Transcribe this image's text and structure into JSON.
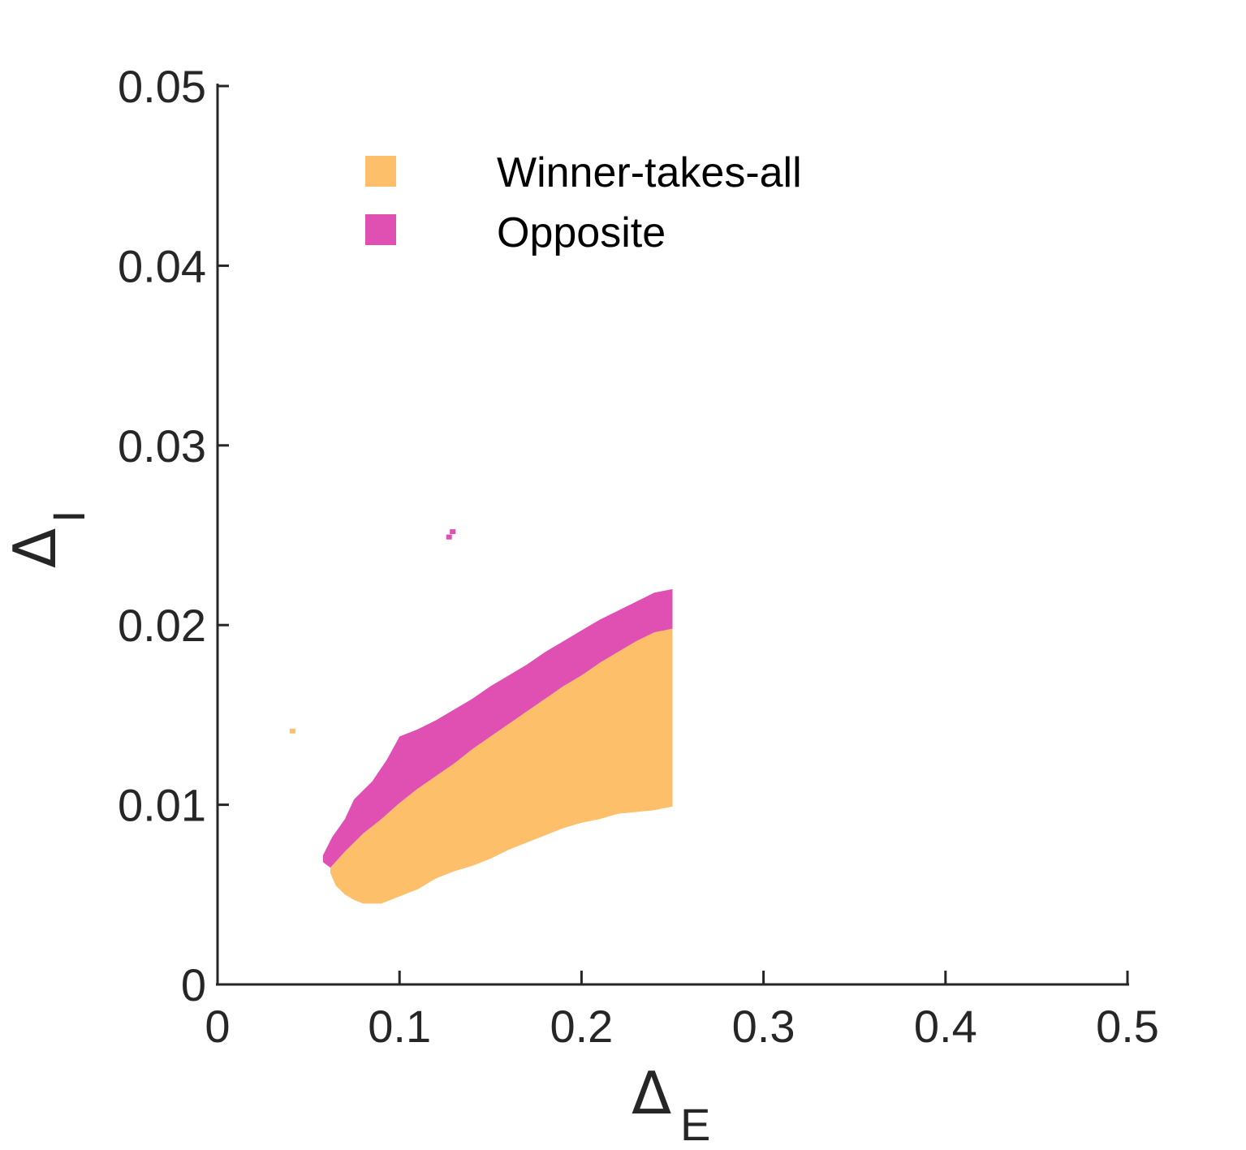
{
  "chart_data": {
    "type": "area",
    "xlabel": {
      "symbol": "Δ",
      "subscript": "E"
    },
    "ylabel": {
      "symbol": "Δ",
      "subscript": "I"
    },
    "xlim": [
      0,
      0.5
    ],
    "ylim": [
      0,
      0.05
    ],
    "xticks": [
      0,
      0.1,
      0.2,
      0.3,
      0.4,
      0.5
    ],
    "xtick_labels": [
      "0",
      "0.1",
      "0.2",
      "0.3",
      "0.4",
      "0.5"
    ],
    "yticks": [
      0,
      0.01,
      0.02,
      0.03,
      0.04,
      0.05
    ],
    "ytick_labels": [
      "0",
      "0.01",
      "0.02",
      "0.03",
      "0.04",
      "0.05"
    ],
    "grid": false,
    "legend_position": "top-left",
    "series": [
      {
        "name": "Winner-takes-all",
        "color": "#FDBF6A",
        "upper": [
          [
            0.062,
            0.0065
          ],
          [
            0.07,
            0.0074
          ],
          [
            0.08,
            0.0084
          ],
          [
            0.09,
            0.0092
          ],
          [
            0.1,
            0.0101
          ],
          [
            0.11,
            0.0109
          ],
          [
            0.12,
            0.0116
          ],
          [
            0.13,
            0.0123
          ],
          [
            0.14,
            0.0131
          ],
          [
            0.15,
            0.0138
          ],
          [
            0.16,
            0.0145
          ],
          [
            0.17,
            0.0152
          ],
          [
            0.18,
            0.0159
          ],
          [
            0.19,
            0.0166
          ],
          [
            0.2,
            0.0172
          ],
          [
            0.21,
            0.0179
          ],
          [
            0.22,
            0.0185
          ],
          [
            0.23,
            0.0191
          ],
          [
            0.24,
            0.0196
          ],
          [
            0.25,
            0.0198
          ]
        ],
        "lower": [
          [
            0.062,
            0.0062
          ],
          [
            0.065,
            0.0055
          ],
          [
            0.07,
            0.005
          ],
          [
            0.075,
            0.0047
          ],
          [
            0.08,
            0.0045
          ],
          [
            0.09,
            0.0045
          ],
          [
            0.1,
            0.0049
          ],
          [
            0.11,
            0.0053
          ],
          [
            0.12,
            0.0059
          ],
          [
            0.13,
            0.0063
          ],
          [
            0.14,
            0.0066
          ],
          [
            0.15,
            0.007
          ],
          [
            0.16,
            0.0075
          ],
          [
            0.17,
            0.0079
          ],
          [
            0.18,
            0.0083
          ],
          [
            0.19,
            0.0087
          ],
          [
            0.2,
            0.009
          ],
          [
            0.21,
            0.0092
          ],
          [
            0.22,
            0.0095
          ],
          [
            0.23,
            0.0096
          ],
          [
            0.24,
            0.0097
          ],
          [
            0.25,
            0.0099
          ]
        ],
        "isolated_points": [
          [
            0.041,
            0.0141
          ]
        ]
      },
      {
        "name": "Opposite",
        "color": "#E050B3",
        "upper": [
          [
            0.058,
            0.0072
          ],
          [
            0.063,
            0.0082
          ],
          [
            0.07,
            0.0092
          ],
          [
            0.075,
            0.0103
          ],
          [
            0.085,
            0.0113
          ],
          [
            0.093,
            0.0125
          ],
          [
            0.1,
            0.0138
          ],
          [
            0.11,
            0.0142
          ],
          [
            0.12,
            0.0147
          ],
          [
            0.13,
            0.0153
          ],
          [
            0.14,
            0.0159
          ],
          [
            0.15,
            0.0166
          ],
          [
            0.16,
            0.0172
          ],
          [
            0.17,
            0.0178
          ],
          [
            0.18,
            0.0185
          ],
          [
            0.19,
            0.0191
          ],
          [
            0.2,
            0.0197
          ],
          [
            0.21,
            0.0203
          ],
          [
            0.22,
            0.0208
          ],
          [
            0.23,
            0.0213
          ],
          [
            0.24,
            0.0218
          ],
          [
            0.25,
            0.022
          ]
        ],
        "lower": [
          [
            0.058,
            0.0068
          ],
          [
            0.062,
            0.0065
          ],
          [
            0.07,
            0.0074
          ],
          [
            0.08,
            0.0084
          ],
          [
            0.09,
            0.0092
          ],
          [
            0.1,
            0.0101
          ],
          [
            0.11,
            0.0109
          ],
          [
            0.12,
            0.0116
          ],
          [
            0.13,
            0.0123
          ],
          [
            0.14,
            0.0131
          ],
          [
            0.15,
            0.0138
          ],
          [
            0.16,
            0.0145
          ],
          [
            0.17,
            0.0152
          ],
          [
            0.18,
            0.0159
          ],
          [
            0.19,
            0.0166
          ],
          [
            0.2,
            0.0172
          ],
          [
            0.21,
            0.0179
          ],
          [
            0.22,
            0.0185
          ],
          [
            0.23,
            0.0191
          ],
          [
            0.24,
            0.0196
          ],
          [
            0.25,
            0.0198
          ]
        ],
        "isolated_points": [
          [
            0.127,
            0.0249
          ],
          [
            0.129,
            0.0252
          ]
        ]
      }
    ]
  }
}
